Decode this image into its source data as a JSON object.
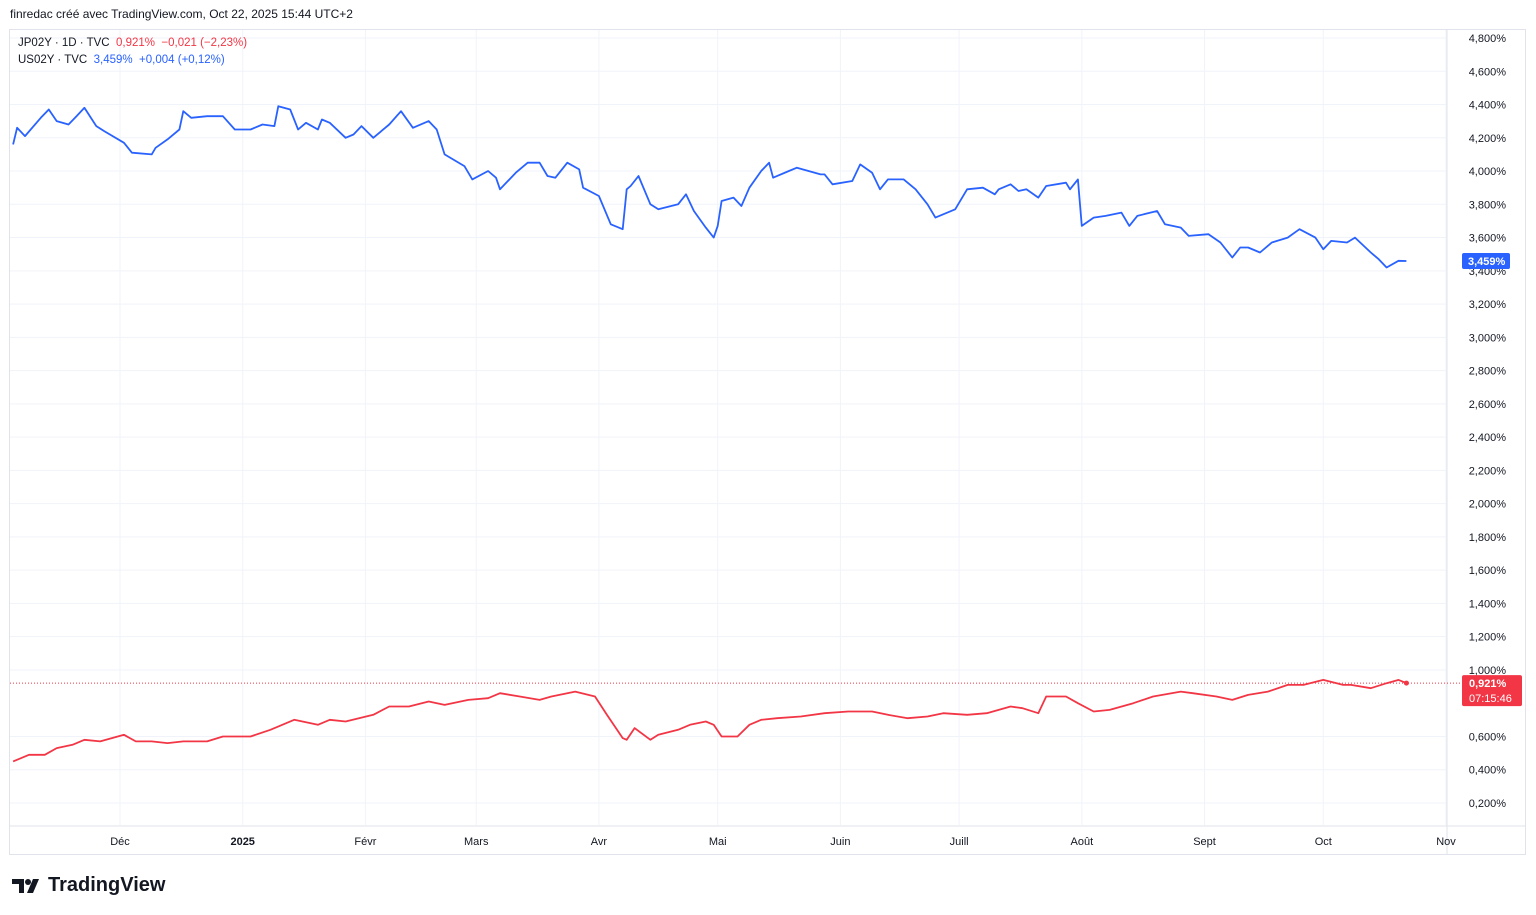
{
  "credit": "finredac créé avec TradingView.com, Oct 22, 2025 15:44 UTC+2",
  "legend": {
    "jp": {
      "symbol": "JP02Y · 1D · TVC",
      "value": "0,921%",
      "change": "−0,021 (−2,23%)"
    },
    "us": {
      "symbol": "US02Y · TVC",
      "value": "3,459%",
      "change": "+0,004 (+0,12%)"
    }
  },
  "price_labels": {
    "us": "3,459%",
    "jp": "0,921%",
    "jp_countdown": "07:15:46"
  },
  "logo": "TradingView",
  "colors": {
    "us": "#2962ff",
    "jp": "#f23645",
    "grid": "#f0f3fa"
  },
  "chart_data": {
    "type": "line",
    "ylim": [
      0.2,
      4.8
    ],
    "y_ticks": [
      "4,800%",
      "4,600%",
      "4,400%",
      "4,200%",
      "4,000%",
      "3,800%",
      "3,600%",
      "3,400%",
      "3,200%",
      "3,000%",
      "2,800%",
      "2,600%",
      "2,400%",
      "2,200%",
      "2,000%",
      "1,800%",
      "1,600%",
      "1,400%",
      "1,200%",
      "1,000%",
      "0,600%",
      "0,400%",
      "0,200%"
    ],
    "y_tick_values": [
      4.8,
      4.6,
      4.4,
      4.2,
      4.0,
      3.8,
      3.6,
      3.4,
      3.2,
      3.0,
      2.8,
      2.6,
      2.4,
      2.2,
      2.0,
      1.8,
      1.6,
      1.4,
      1.2,
      1.0,
      0.6,
      0.4,
      0.2
    ],
    "x_ticks": [
      {
        "label": "Déc",
        "date": "2024-12-01"
      },
      {
        "label": "2025",
        "date": "2025-01-01",
        "bold": true
      },
      {
        "label": "Févr",
        "date": "2025-02-01"
      },
      {
        "label": "Mars",
        "date": "2025-03-01"
      },
      {
        "label": "Avr",
        "date": "2025-04-01"
      },
      {
        "label": "Mai",
        "date": "2025-05-01"
      },
      {
        "label": "Juin",
        "date": "2025-06-01"
      },
      {
        "label": "Juill",
        "date": "2025-07-01"
      },
      {
        "label": "Août",
        "date": "2025-08-01"
      },
      {
        "label": "Sept",
        "date": "2025-09-01"
      },
      {
        "label": "Oct",
        "date": "2025-10-01"
      },
      {
        "label": "Nov",
        "date": "2025-11-01"
      }
    ],
    "series": [
      {
        "name": "US02Y",
        "color": "#2962ff",
        "points": [
          [
            "2024-11-04",
            4.16
          ],
          [
            "2024-11-05",
            4.26
          ],
          [
            "2024-11-07",
            4.21
          ],
          [
            "2024-11-11",
            4.32
          ],
          [
            "2024-11-13",
            4.37
          ],
          [
            "2024-11-15",
            4.3
          ],
          [
            "2024-11-18",
            4.28
          ],
          [
            "2024-11-20",
            4.33
          ],
          [
            "2024-11-22",
            4.38
          ],
          [
            "2024-11-25",
            4.27
          ],
          [
            "2024-11-27",
            4.24
          ],
          [
            "2024-12-02",
            4.17
          ],
          [
            "2024-12-04",
            4.11
          ],
          [
            "2024-12-09",
            4.1
          ],
          [
            "2024-12-10",
            4.14
          ],
          [
            "2024-12-13",
            4.19
          ],
          [
            "2024-12-16",
            4.25
          ],
          [
            "2024-12-17",
            4.36
          ],
          [
            "2024-12-19",
            4.32
          ],
          [
            "2024-12-23",
            4.33
          ],
          [
            "2024-12-27",
            4.33
          ],
          [
            "2024-12-30",
            4.25
          ],
          [
            "2025-01-03",
            4.25
          ],
          [
            "2025-01-06",
            4.28
          ],
          [
            "2025-01-09",
            4.27
          ],
          [
            "2025-01-10",
            4.39
          ],
          [
            "2025-01-13",
            4.37
          ],
          [
            "2025-01-15",
            4.25
          ],
          [
            "2025-01-17",
            4.29
          ],
          [
            "2025-01-20",
            4.25
          ],
          [
            "2025-01-21",
            4.31
          ],
          [
            "2025-01-23",
            4.29
          ],
          [
            "2025-01-27",
            4.2
          ],
          [
            "2025-01-29",
            4.22
          ],
          [
            "2025-01-31",
            4.27
          ],
          [
            "2025-02-03",
            4.2
          ],
          [
            "2025-02-07",
            4.28
          ],
          [
            "2025-02-10",
            4.36
          ],
          [
            "2025-02-13",
            4.26
          ],
          [
            "2025-02-17",
            4.3
          ],
          [
            "2025-02-19",
            4.25
          ],
          [
            "2025-02-21",
            4.1
          ],
          [
            "2025-02-26",
            4.03
          ],
          [
            "2025-02-28",
            3.95
          ],
          [
            "2025-03-04",
            4.0
          ],
          [
            "2025-03-06",
            3.96
          ],
          [
            "2025-03-07",
            3.89
          ],
          [
            "2025-03-11",
            3.99
          ],
          [
            "2025-03-14",
            4.05
          ],
          [
            "2025-03-17",
            4.05
          ],
          [
            "2025-03-19",
            3.97
          ],
          [
            "2025-03-21",
            3.96
          ],
          [
            "2025-03-24",
            4.05
          ],
          [
            "2025-03-27",
            4.01
          ],
          [
            "2025-03-28",
            3.9
          ],
          [
            "2025-04-01",
            3.85
          ],
          [
            "2025-04-04",
            3.68
          ],
          [
            "2025-04-07",
            3.65
          ],
          [
            "2025-04-08",
            3.89
          ],
          [
            "2025-04-09",
            3.91
          ],
          [
            "2025-04-11",
            3.97
          ],
          [
            "2025-04-14",
            3.8
          ],
          [
            "2025-04-16",
            3.77
          ],
          [
            "2025-04-21",
            3.8
          ],
          [
            "2025-04-23",
            3.86
          ],
          [
            "2025-04-25",
            3.76
          ],
          [
            "2025-04-28",
            3.66
          ],
          [
            "2025-04-30",
            3.6
          ],
          [
            "2025-05-01",
            3.67
          ],
          [
            "2025-05-02",
            3.82
          ],
          [
            "2025-05-05",
            3.84
          ],
          [
            "2025-05-07",
            3.79
          ],
          [
            "2025-05-09",
            3.9
          ],
          [
            "2025-05-12",
            4.0
          ],
          [
            "2025-05-14",
            4.05
          ],
          [
            "2025-05-15",
            3.96
          ],
          [
            "2025-05-19",
            4.0
          ],
          [
            "2025-05-21",
            4.02
          ],
          [
            "2025-05-27",
            3.98
          ],
          [
            "2025-05-28",
            3.98
          ],
          [
            "2025-05-30",
            3.92
          ],
          [
            "2025-06-04",
            3.94
          ],
          [
            "2025-06-06",
            4.04
          ],
          [
            "2025-06-09",
            3.99
          ],
          [
            "2025-06-11",
            3.89
          ],
          [
            "2025-06-13",
            3.95
          ],
          [
            "2025-06-17",
            3.95
          ],
          [
            "2025-06-20",
            3.89
          ],
          [
            "2025-06-23",
            3.8
          ],
          [
            "2025-06-25",
            3.72
          ],
          [
            "2025-06-30",
            3.77
          ],
          [
            "2025-07-03",
            3.89
          ],
          [
            "2025-07-07",
            3.9
          ],
          [
            "2025-07-10",
            3.86
          ],
          [
            "2025-07-11",
            3.89
          ],
          [
            "2025-07-14",
            3.92
          ],
          [
            "2025-07-16",
            3.88
          ],
          [
            "2025-07-18",
            3.89
          ],
          [
            "2025-07-21",
            3.84
          ],
          [
            "2025-07-23",
            3.91
          ],
          [
            "2025-07-28",
            3.93
          ],
          [
            "2025-07-29",
            3.89
          ],
          [
            "2025-07-31",
            3.95
          ],
          [
            "2025-08-01",
            3.67
          ],
          [
            "2025-08-04",
            3.72
          ],
          [
            "2025-08-07",
            3.73
          ],
          [
            "2025-08-11",
            3.75
          ],
          [
            "2025-08-13",
            3.67
          ],
          [
            "2025-08-15",
            3.73
          ],
          [
            "2025-08-20",
            3.76
          ],
          [
            "2025-08-22",
            3.68
          ],
          [
            "2025-08-26",
            3.66
          ],
          [
            "2025-08-28",
            3.61
          ],
          [
            "2025-09-02",
            3.62
          ],
          [
            "2025-09-05",
            3.57
          ],
          [
            "2025-09-08",
            3.48
          ],
          [
            "2025-09-10",
            3.54
          ],
          [
            "2025-09-12",
            3.54
          ],
          [
            "2025-09-15",
            3.51
          ],
          [
            "2025-09-18",
            3.57
          ],
          [
            "2025-09-22",
            3.6
          ],
          [
            "2025-09-25",
            3.65
          ],
          [
            "2025-09-29",
            3.6
          ],
          [
            "2025-10-01",
            3.53
          ],
          [
            "2025-10-03",
            3.58
          ],
          [
            "2025-10-07",
            3.57
          ],
          [
            "2025-10-09",
            3.6
          ],
          [
            "2025-10-13",
            3.51
          ],
          [
            "2025-10-15",
            3.47
          ],
          [
            "2025-10-17",
            3.42
          ],
          [
            "2025-10-20",
            3.46
          ],
          [
            "2025-10-22",
            3.459
          ]
        ]
      },
      {
        "name": "JP02Y",
        "color": "#f23645",
        "points": [
          [
            "2024-11-04",
            0.45
          ],
          [
            "2024-11-08",
            0.49
          ],
          [
            "2024-11-12",
            0.49
          ],
          [
            "2024-11-15",
            0.53
          ],
          [
            "2024-11-19",
            0.55
          ],
          [
            "2024-11-22",
            0.58
          ],
          [
            "2024-11-26",
            0.57
          ],
          [
            "2024-12-02",
            0.61
          ],
          [
            "2024-12-05",
            0.57
          ],
          [
            "2024-12-09",
            0.57
          ],
          [
            "2024-12-13",
            0.56
          ],
          [
            "2024-12-17",
            0.57
          ],
          [
            "2024-12-23",
            0.57
          ],
          [
            "2024-12-27",
            0.6
          ],
          [
            "2025-01-03",
            0.6
          ],
          [
            "2025-01-08",
            0.64
          ],
          [
            "2025-01-14",
            0.7
          ],
          [
            "2025-01-20",
            0.67
          ],
          [
            "2025-01-23",
            0.7
          ],
          [
            "2025-01-27",
            0.69
          ],
          [
            "2025-02-03",
            0.73
          ],
          [
            "2025-02-07",
            0.78
          ],
          [
            "2025-02-12",
            0.78
          ],
          [
            "2025-02-17",
            0.81
          ],
          [
            "2025-02-21",
            0.79
          ],
          [
            "2025-02-27",
            0.82
          ],
          [
            "2025-03-04",
            0.83
          ],
          [
            "2025-03-07",
            0.86
          ],
          [
            "2025-03-12",
            0.84
          ],
          [
            "2025-03-17",
            0.82
          ],
          [
            "2025-03-20",
            0.84
          ],
          [
            "2025-03-26",
            0.87
          ],
          [
            "2025-03-31",
            0.84
          ],
          [
            "2025-04-03",
            0.73
          ],
          [
            "2025-04-07",
            0.59
          ],
          [
            "2025-04-08",
            0.58
          ],
          [
            "2025-04-10",
            0.65
          ],
          [
            "2025-04-14",
            0.58
          ],
          [
            "2025-04-16",
            0.61
          ],
          [
            "2025-04-21",
            0.64
          ],
          [
            "2025-04-24",
            0.67
          ],
          [
            "2025-04-28",
            0.69
          ],
          [
            "2025-04-30",
            0.67
          ],
          [
            "2025-05-02",
            0.6
          ],
          [
            "2025-05-06",
            0.6
          ],
          [
            "2025-05-09",
            0.67
          ],
          [
            "2025-05-12",
            0.7
          ],
          [
            "2025-05-16",
            0.71
          ],
          [
            "2025-05-22",
            0.72
          ],
          [
            "2025-05-28",
            0.74
          ],
          [
            "2025-06-03",
            0.75
          ],
          [
            "2025-06-09",
            0.75
          ],
          [
            "2025-06-13",
            0.73
          ],
          [
            "2025-06-18",
            0.71
          ],
          [
            "2025-06-23",
            0.72
          ],
          [
            "2025-06-27",
            0.74
          ],
          [
            "2025-07-03",
            0.73
          ],
          [
            "2025-07-08",
            0.74
          ],
          [
            "2025-07-14",
            0.78
          ],
          [
            "2025-07-17",
            0.77
          ],
          [
            "2025-07-21",
            0.74
          ],
          [
            "2025-07-23",
            0.84
          ],
          [
            "2025-07-28",
            0.84
          ],
          [
            "2025-07-31",
            0.8
          ],
          [
            "2025-08-04",
            0.75
          ],
          [
            "2025-08-08",
            0.76
          ],
          [
            "2025-08-14",
            0.8
          ],
          [
            "2025-08-19",
            0.84
          ],
          [
            "2025-08-26",
            0.87
          ],
          [
            "2025-08-29",
            0.86
          ],
          [
            "2025-09-04",
            0.84
          ],
          [
            "2025-09-08",
            0.82
          ],
          [
            "2025-09-12",
            0.85
          ],
          [
            "2025-09-17",
            0.87
          ],
          [
            "2025-09-22",
            0.91
          ],
          [
            "2025-09-26",
            0.91
          ],
          [
            "2025-10-01",
            0.94
          ],
          [
            "2025-10-06",
            0.91
          ],
          [
            "2025-10-08",
            0.91
          ],
          [
            "2025-10-13",
            0.89
          ],
          [
            "2025-10-17",
            0.92
          ],
          [
            "2025-10-20",
            0.94
          ],
          [
            "2025-10-22",
            0.921
          ]
        ]
      }
    ]
  }
}
